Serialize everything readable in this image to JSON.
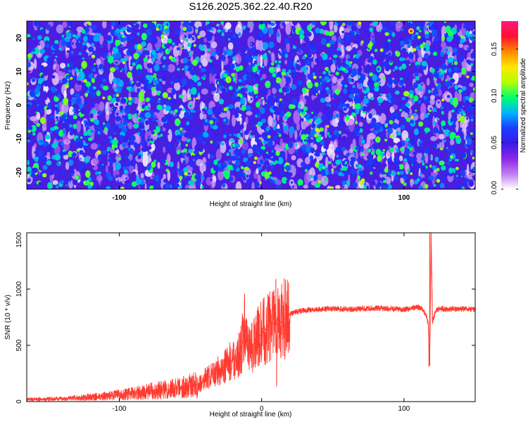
{
  "figure_title": "S126.2025.362.22.40.R20",
  "chart_data": [
    {
      "type": "heatmap",
      "title": "S126.2025.362.22.40.R20",
      "xlabel": "Height of straight line (km)",
      "ylabel": "Frequency (Hz)",
      "xlim": [
        -165,
        150
      ],
      "ylim": [
        -25,
        25
      ],
      "x_ticks": [
        -100,
        0,
        100
      ],
      "y_ticks": [
        -20,
        -10,
        0,
        10,
        20
      ],
      "colorbar": {
        "label": "Normalized spectral amplitude",
        "range": [
          0.0,
          0.18
        ],
        "ticks": [
          0.0,
          0.05,
          0.1,
          0.15
        ],
        "tick_labels": [
          "0.00",
          "0.05",
          "0.10",
          "0.15"
        ],
        "colors": [
          "#ffffff",
          "#c07cf0",
          "#8a28e6",
          "#3a1ae8",
          "#1a3cff",
          "#00b4ff",
          "#00ff6e",
          "#b4ff00",
          "#ffe600",
          "#ff8800",
          "#ff1030",
          "#ff1a7a"
        ]
      }
    },
    {
      "type": "line",
      "xlabel": "Height of straight line (km)",
      "ylabel": "SNR (10 * v/v)",
      "xlim": [
        -165,
        150
      ],
      "ylim": [
        0,
        1500
      ],
      "x_ticks": [
        -100,
        0,
        100
      ],
      "y_ticks": [
        0,
        500,
        1000,
        1500
      ],
      "series": [
        {
          "name": "SNR",
          "color": "#ff3b30",
          "x": [
            -165,
            -140,
            -120,
            -100,
            -85,
            -75,
            -65,
            -55,
            -45,
            -40,
            -35,
            -30,
            -25,
            -20,
            -15,
            -12,
            -10,
            -8,
            -5,
            -2,
            0,
            3,
            5,
            8,
            10,
            11,
            13,
            15,
            17,
            20,
            25,
            30,
            40,
            50,
            60,
            70,
            80,
            90,
            100,
            105,
            110,
            113,
            115,
            117,
            118,
            119,
            120,
            122,
            125,
            130,
            140,
            150
          ],
          "y": [
            20,
            25,
            40,
            60,
            80,
            100,
            110,
            130,
            150,
            200,
            230,
            280,
            320,
            380,
            420,
            650,
            450,
            480,
            520,
            580,
            600,
            650,
            680,
            700,
            680,
            750,
            700,
            720,
            750,
            780,
            800,
            810,
            820,
            825,
            820,
            825,
            830,
            825,
            820,
            830,
            840,
            820,
            780,
            700,
            320,
            1500,
            700,
            800,
            830,
            820,
            825,
            820
          ]
        }
      ],
      "annotations": [
        {
          "x": -12,
          "y": 960,
          "label": ""
        },
        {
          "x": 10,
          "y": 1090,
          "label": ""
        },
        {
          "x": 10.5,
          "y": 135,
          "label": ""
        },
        {
          "x": 118,
          "y": 1500,
          "label": ""
        },
        {
          "x": 117.5,
          "y": 310,
          "label": ""
        }
      ]
    }
  ]
}
